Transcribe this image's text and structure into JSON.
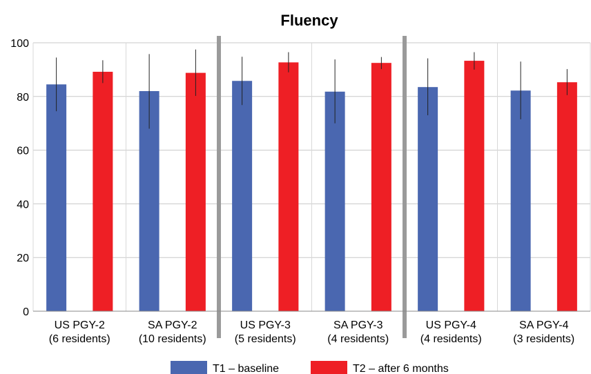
{
  "chart_data": {
    "type": "bar",
    "title": "Fluency",
    "xlabel": "",
    "ylabel": "",
    "ylim": [
      0,
      100
    ],
    "yticks": [
      0,
      20,
      40,
      60,
      80,
      100
    ],
    "grid": true,
    "legend_position": "bottom",
    "categories": [
      [
        "US PGY-2",
        "(6 residents)"
      ],
      [
        "SA PGY-2",
        "(10 residents)"
      ],
      [
        "US PGY-3",
        "(5 residents)"
      ],
      [
        "SA PGY-3",
        "(4 residents)"
      ],
      [
        "US PGY-4",
        "(4 residents)"
      ],
      [
        "SA PGY-4",
        "(3 residents)"
      ]
    ],
    "group_separators_after": [
      1,
      3
    ],
    "series": [
      {
        "name": "T1 – baseline",
        "color": "#4a67b0",
        "values": [
          84.5,
          82,
          85.8,
          81.8,
          83.5,
          82.2
        ],
        "error_low": [
          74.5,
          68,
          76.8,
          70,
          73,
          71.5
        ],
        "error_high": [
          94.5,
          95.8,
          94.8,
          93.8,
          94.2,
          93
        ]
      },
      {
        "name": "T2 – after 6 months",
        "color": "#ee1f25",
        "values": [
          89.2,
          88.8,
          92.7,
          92.5,
          93.3,
          85.3
        ],
        "error_low": [
          85,
          80.2,
          89,
          90.2,
          90,
          80.5
        ],
        "error_high": [
          93.5,
          97.5,
          96.5,
          94.7,
          96.5,
          90.2
        ]
      }
    ]
  }
}
